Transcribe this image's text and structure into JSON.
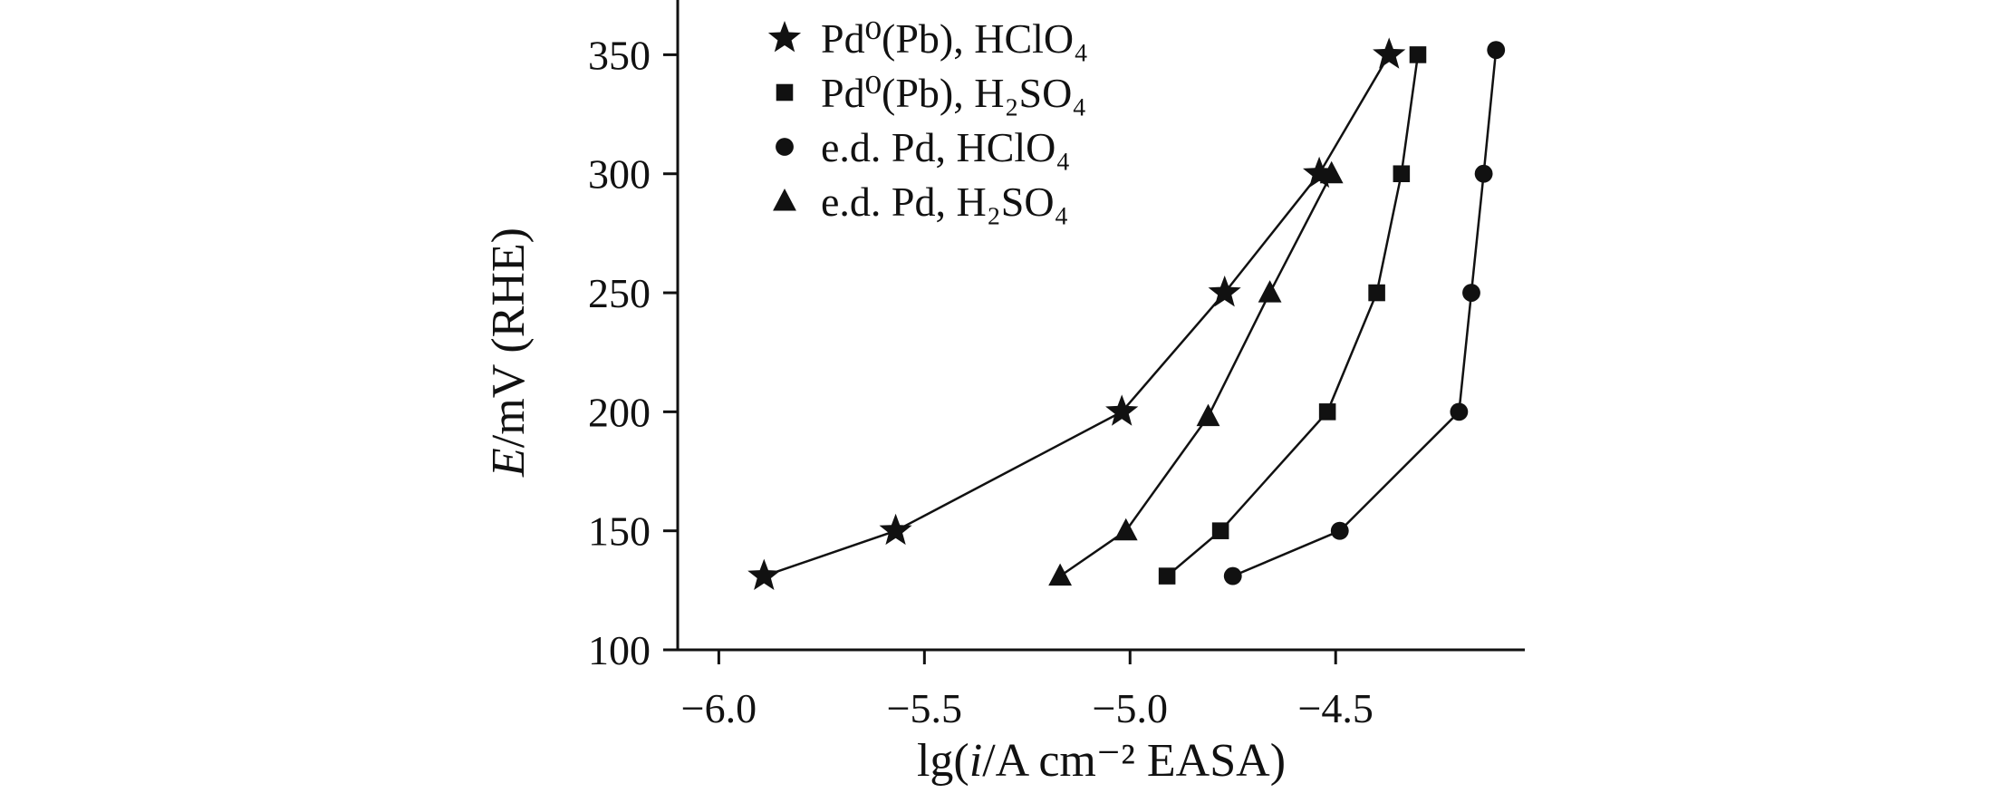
{
  "colors": {
    "foreground": "#111111",
    "background": "#ffffff"
  },
  "chart_data": {
    "type": "line",
    "xlabel": "lg(i/A cm⁻² EASA)",
    "xlabel_segments": [
      {
        "t": "lg("
      },
      {
        "t": "i",
        "italic": true
      },
      {
        "t": "/A cm⁻² EASA)"
      }
    ],
    "ylabel": "E/mV (RHE)",
    "ylabel_segments": [
      {
        "t": "E",
        "italic": true
      },
      {
        "t": "/mV (RHE)"
      }
    ],
    "xlim": [
      -6.1,
      -4.04
    ],
    "ylim": [
      100,
      373
    ],
    "x_ticks": [
      -6.0,
      -5.5,
      -5.0,
      -4.5
    ],
    "x_tick_labels": [
      "−6.0",
      "−5.5",
      "−5.0",
      "−4.5"
    ],
    "y_ticks": [
      100,
      150,
      200,
      250,
      300,
      350
    ],
    "y_tick_labels": [
      "100",
      "150",
      "200",
      "250",
      "300",
      "350"
    ],
    "grid": false,
    "legend_position": "top-left-inside",
    "series": [
      {
        "name": "Pd⁰(Pb), HClO₄",
        "marker": "star",
        "color": "#111111",
        "points": [
          [
            -5.89,
            131
          ],
          [
            -5.57,
            150
          ],
          [
            -5.02,
            200
          ],
          [
            -4.77,
            250
          ],
          [
            -4.54,
            300
          ],
          [
            -4.37,
            350
          ]
        ]
      },
      {
        "name": "Pd⁰(Pb), H₂SO₄",
        "marker": "square",
        "color": "#111111",
        "points": [
          [
            -4.91,
            131
          ],
          [
            -4.78,
            150
          ],
          [
            -4.52,
            200
          ],
          [
            -4.4,
            250
          ],
          [
            -4.34,
            300
          ],
          [
            -4.3,
            350
          ]
        ]
      },
      {
        "name": "e.d. Pd, HClO₄",
        "marker": "circle",
        "color": "#111111",
        "points": [
          [
            -4.75,
            131
          ],
          [
            -4.49,
            150
          ],
          [
            -4.2,
            200
          ],
          [
            -4.17,
            250
          ],
          [
            -4.14,
            300
          ],
          [
            -4.11,
            352
          ]
        ]
      },
      {
        "name": "e.d. Pd, H₂SO₄",
        "marker": "triangle",
        "color": "#111111",
        "points": [
          [
            -5.17,
            131
          ],
          [
            -5.01,
            150
          ],
          [
            -4.81,
            198
          ],
          [
            -4.66,
            250
          ],
          [
            -4.51,
            300
          ]
        ]
      }
    ]
  }
}
